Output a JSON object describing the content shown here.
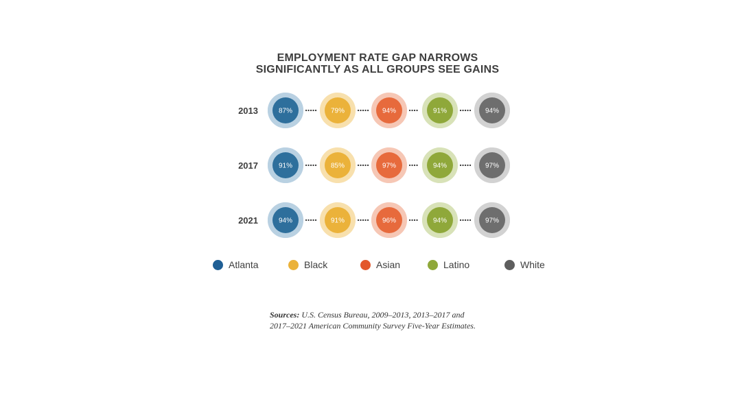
{
  "chart_data": {
    "type": "donut-grid",
    "title_lines": [
      "EMPLOYMENT RATE GAP NARROWS",
      "SIGNIFICANTLY AS ALL GROUPS SEE GAINS"
    ],
    "years": [
      "2013",
      "2017",
      "2021"
    ],
    "series": [
      {
        "name": "Atlanta",
        "color": "#2e6f9c",
        "light": "#b9d0e2",
        "values": [
          87,
          91,
          94
        ],
        "labels": [
          "87%",
          "91%",
          "94%"
        ]
      },
      {
        "name": "Black",
        "color": "#ebb23a",
        "light": "#f7e0ad",
        "values": [
          79,
          85,
          91
        ],
        "labels": [
          "79%",
          "85%",
          "91%"
        ]
      },
      {
        "name": "Asian",
        "color": "#e76a3c",
        "light": "#f6c7b5",
        "values": [
          94,
          97,
          96
        ],
        "labels": [
          "94%",
          "97%",
          "96%"
        ]
      },
      {
        "name": "Latino",
        "color": "#8fa83a",
        "light": "#d8e2b8",
        "values": [
          91,
          94,
          94
        ],
        "labels": [
          "91%",
          "94%",
          "94%"
        ]
      },
      {
        "name": "White",
        "color": "#6e6e6e",
        "light": "#d2d2d2",
        "values": [
          94,
          97,
          97
        ],
        "labels": [
          "94%",
          "97%",
          "97%"
        ]
      }
    ],
    "legend": {
      "position": "bottom"
    }
  },
  "sources": {
    "label": "Sources:",
    "line1": " U.S. Census Bureau, 2009–2013, 2013–2017 and",
    "line2": "2017–2021 American Community Survey Five-Year Estimates."
  }
}
